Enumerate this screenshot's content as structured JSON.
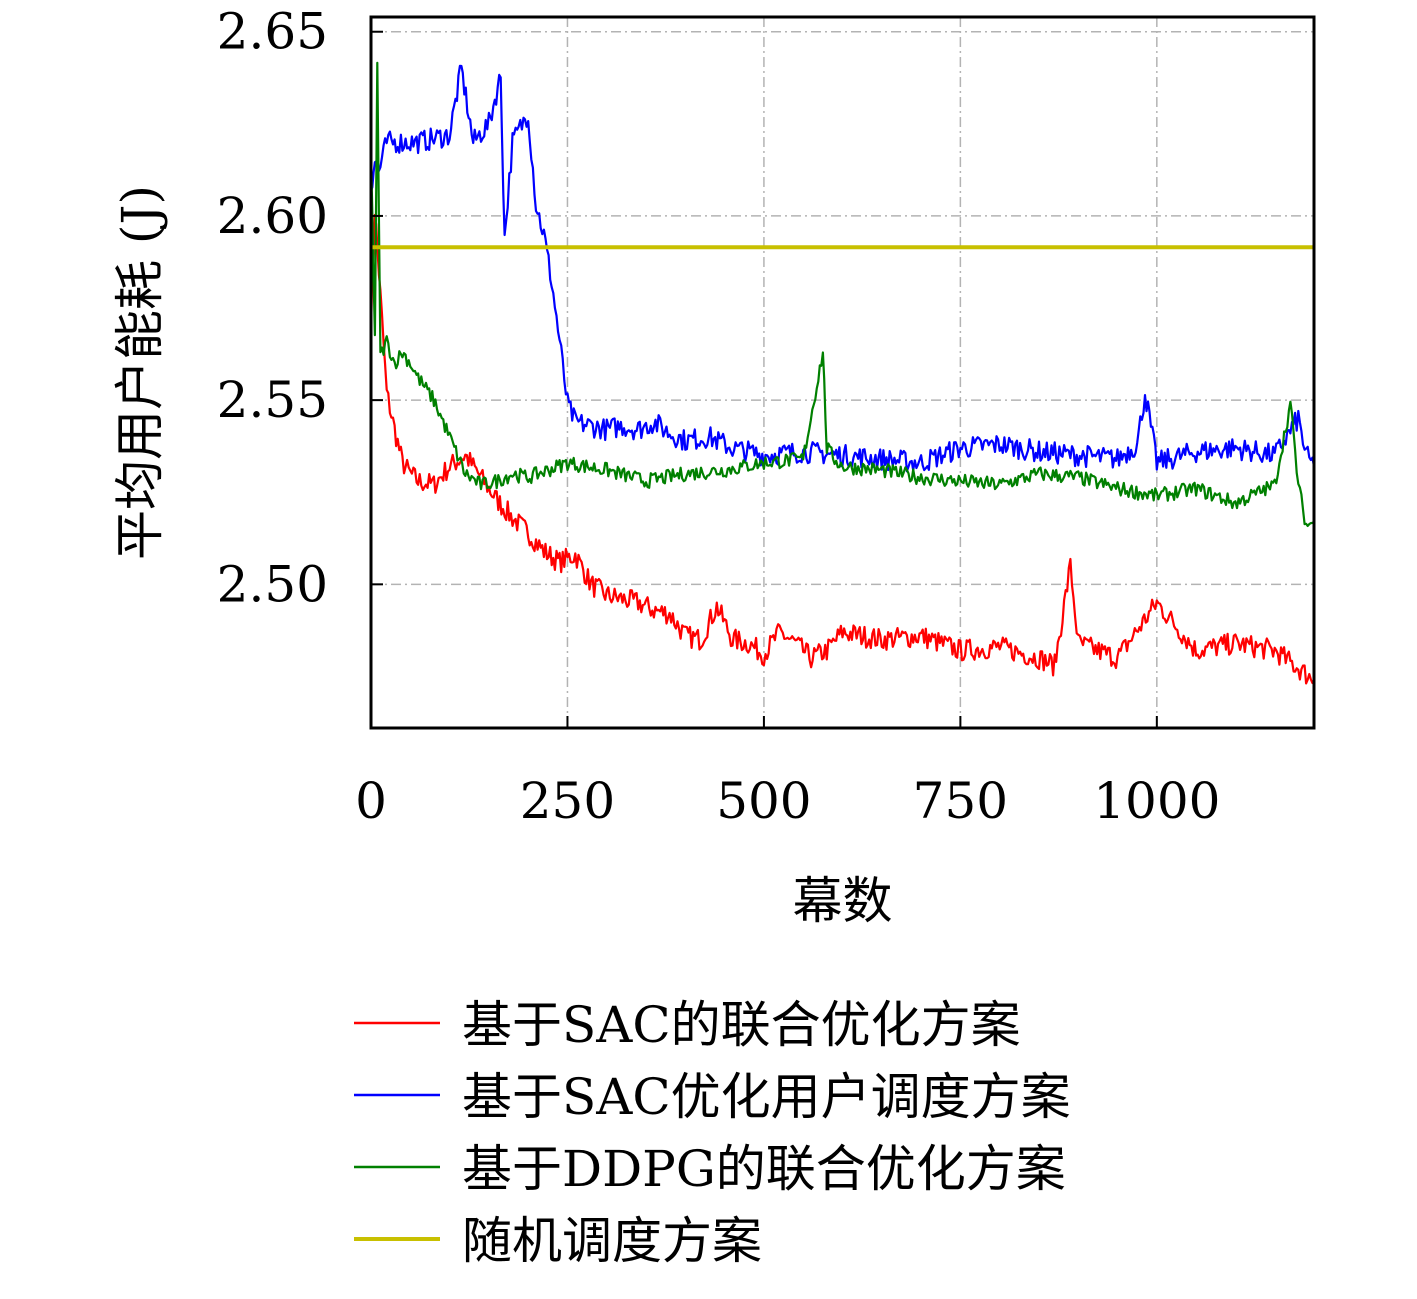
{
  "chart_data": {
    "type": "line",
    "xlabel": "幕数",
    "ylabel": "平均用户能耗 (J)",
    "xlim": [
      0,
      1200
    ],
    "ylim": [
      2.461,
      2.654
    ],
    "xticks": [
      0,
      250,
      500,
      750,
      1000
    ],
    "xtick_labels": [
      "0",
      "250",
      "500",
      "750",
      "1000"
    ],
    "yticks": [
      2.5,
      2.55,
      2.6,
      2.65
    ],
    "ytick_labels": [
      "2.50",
      "2.55",
      "2.60",
      "2.65"
    ],
    "grid": true,
    "legend_position": "bottom",
    "series": [
      {
        "name": "基于SAC的联合优化方案",
        "color": "#ff0000",
        "x": [
          0,
          5,
          10,
          20,
          30,
          40,
          50,
          60,
          80,
          100,
          120,
          140,
          160,
          180,
          200,
          220,
          240,
          260,
          280,
          300,
          320,
          340,
          360,
          380,
          400,
          420,
          440,
          460,
          480,
          500,
          520,
          540,
          560,
          580,
          600,
          650,
          700,
          750,
          800,
          850,
          870,
          890,
          900,
          950,
          1000,
          1050,
          1100,
          1150,
          1200
        ],
        "y": [
          2.572,
          2.602,
          2.585,
          2.552,
          2.542,
          2.533,
          2.53,
          2.528,
          2.527,
          2.532,
          2.535,
          2.529,
          2.523,
          2.518,
          2.514,
          2.509,
          2.506,
          2.508,
          2.5,
          2.497,
          2.496,
          2.495,
          2.493,
          2.492,
          2.486,
          2.485,
          2.494,
          2.485,
          2.484,
          2.481,
          2.487,
          2.484,
          2.48,
          2.482,
          2.487,
          2.485,
          2.486,
          2.482,
          2.483,
          2.48,
          2.478,
          2.505,
          2.484,
          2.48,
          2.495,
          2.482,
          2.484,
          2.482,
          2.474
        ]
      },
      {
        "name": "基于SAC优化用户调度方案",
        "color": "#0000ff",
        "x": [
          0,
          5,
          10,
          20,
          40,
          60,
          80,
          100,
          115,
          130,
          150,
          165,
          170,
          180,
          200,
          210,
          220,
          230,
          240,
          250,
          260,
          280,
          300,
          320,
          340,
          360,
          380,
          400,
          430,
          460,
          500,
          550,
          600,
          650,
          700,
          750,
          800,
          850,
          900,
          950,
          975,
          985,
          1000,
          1050,
          1100,
          1150,
          1180,
          1190,
          1200
        ],
        "y": [
          2.608,
          2.615,
          2.612,
          2.62,
          2.62,
          2.62,
          2.621,
          2.622,
          2.64,
          2.62,
          2.625,
          2.638,
          2.594,
          2.62,
          2.628,
          2.603,
          2.595,
          2.582,
          2.566,
          2.549,
          2.544,
          2.543,
          2.542,
          2.543,
          2.542,
          2.544,
          2.541,
          2.539,
          2.54,
          2.537,
          2.535,
          2.536,
          2.535,
          2.534,
          2.533,
          2.537,
          2.538,
          2.536,
          2.535,
          2.534,
          2.538,
          2.552,
          2.533,
          2.536,
          2.537,
          2.535,
          2.545,
          2.535,
          2.532
        ]
      },
      {
        "name": "基于DDPG的联合优化方案",
        "color": "#008000",
        "x": [
          0,
          5,
          8,
          12,
          16,
          20,
          30,
          40,
          50,
          60,
          80,
          100,
          120,
          140,
          160,
          180,
          200,
          250,
          300,
          350,
          400,
          450,
          500,
          550,
          575,
          580,
          590,
          600,
          650,
          700,
          750,
          800,
          850,
          900,
          950,
          1000,
          1050,
          1100,
          1150,
          1170,
          1180,
          1190,
          1200
        ],
        "y": [
          2.618,
          2.566,
          2.64,
          2.562,
          2.564,
          2.566,
          2.56,
          2.563,
          2.56,
          2.556,
          2.55,
          2.54,
          2.53,
          2.527,
          2.528,
          2.53,
          2.529,
          2.533,
          2.531,
          2.528,
          2.53,
          2.531,
          2.533,
          2.534,
          2.563,
          2.537,
          2.534,
          2.532,
          2.531,
          2.529,
          2.528,
          2.527,
          2.53,
          2.529,
          2.526,
          2.524,
          2.526,
          2.522,
          2.527,
          2.549,
          2.527,
          2.516,
          2.517
        ]
      },
      {
        "name": "随机调度方案",
        "color": "#c8c000",
        "x": [
          0,
          1200
        ],
        "y": [
          2.5915,
          2.5915
        ]
      }
    ]
  }
}
